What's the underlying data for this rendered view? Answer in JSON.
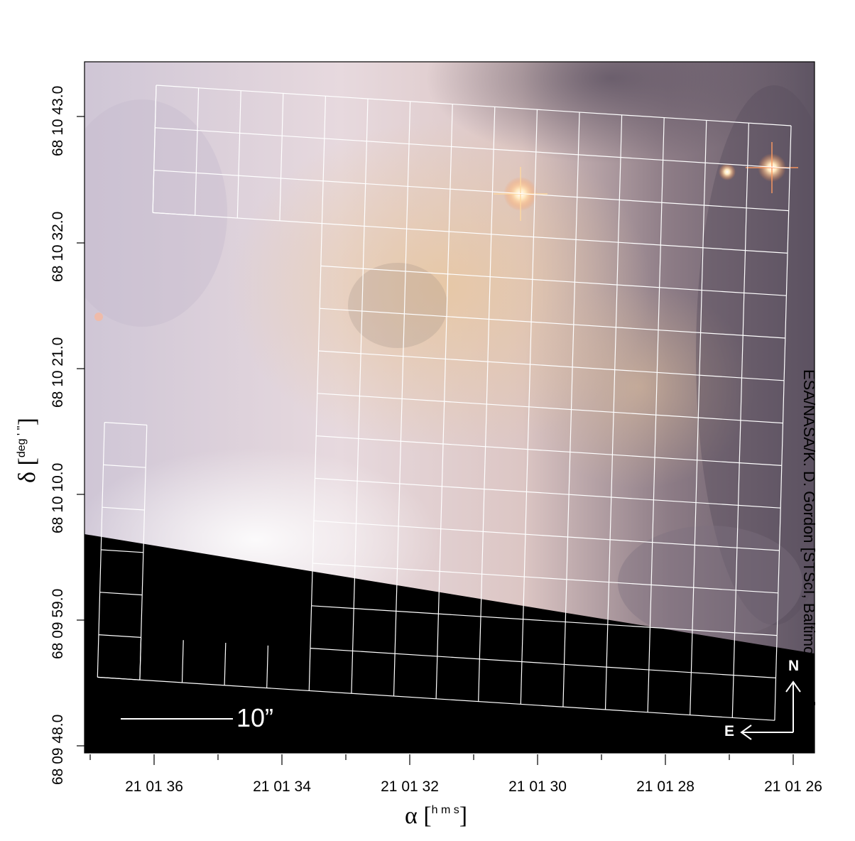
{
  "y_axis": {
    "label": "δ",
    "label_units": "deg ' ''",
    "ticks": [
      "68 10 43.0",
      "68 10 32.0",
      "68 10 21.0",
      "68 10 10.0",
      "68 09 59.0",
      "68 09 48.0"
    ]
  },
  "x_axis": {
    "label": "α",
    "label_units": "h m s",
    "ticks": [
      "21 01 36",
      "21 01 34",
      "21 01 32",
      "21 01 30",
      "21 01 28",
      "21 01 26"
    ]
  },
  "credit": "ESA/NASA/K. D. Gordon [STScI, Baltimore, MD]",
  "scalebar": {
    "label": "10”"
  },
  "compass": {
    "north": "N",
    "east": "E"
  },
  "colors": {
    "nebula_light": "#e9dde3",
    "nebula_warm": "#e6c7a5",
    "nebula_dark": "#5e5463",
    "masked_region": "#000000",
    "grid": "#ffffff"
  }
}
